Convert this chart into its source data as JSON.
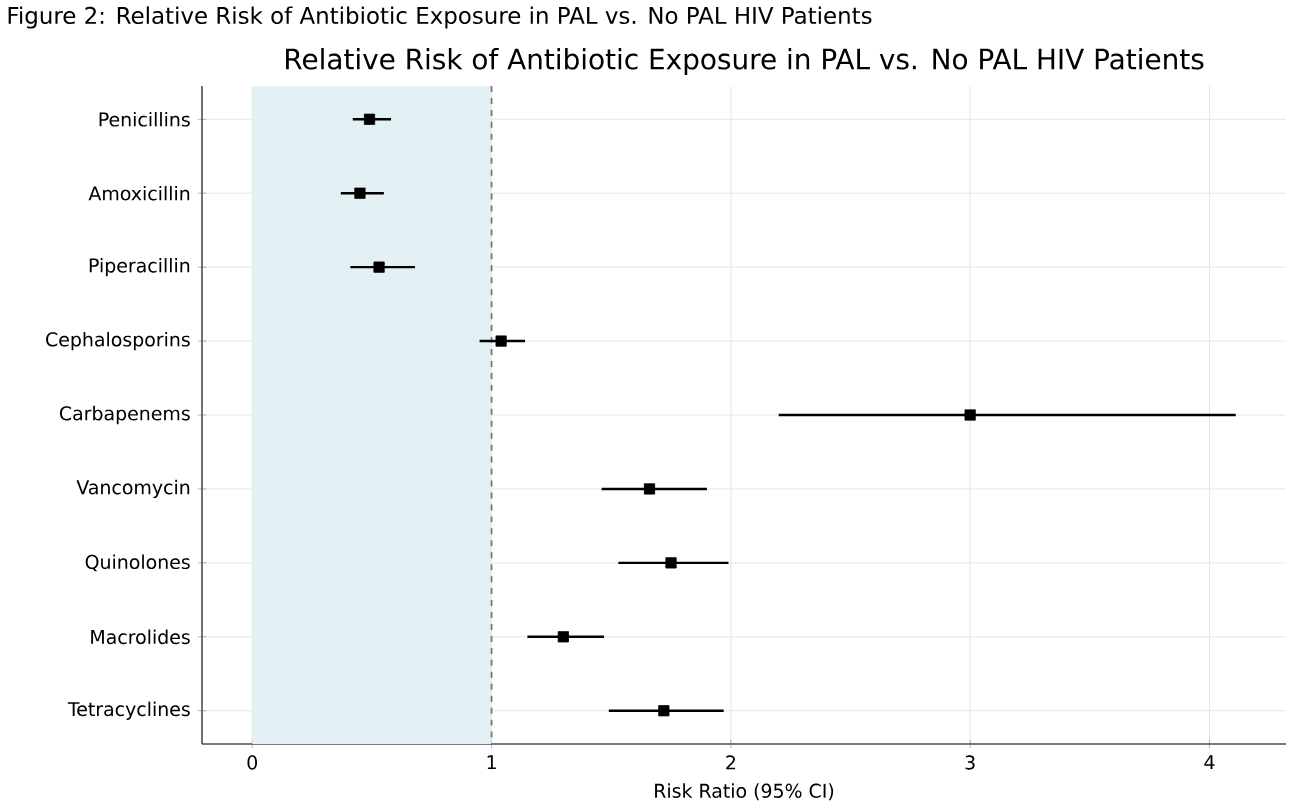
{
  "chart_data": {
    "type": "scatter",
    "orientation": "horizontal",
    "title": "Relative Risk of Antibiotic Exposure in PAL vs. No PAL HIV Patients",
    "annotations": [
      "Figure 2: Relative Risk of Antibiotic Exposure in PAL vs. No PAL HIV Patients"
    ],
    "xlabel": "Risk Ratio (95% CI)",
    "categories": [
      "Penicillins",
      "Amoxicillin",
      "Piperacillin",
      "Cephalosporins",
      "Carbapenems",
      "Vancomycin",
      "Quinolones",
      "Macrolides",
      "Tetracyclines"
    ],
    "values": [
      0.49,
      0.45,
      0.53,
      1.04,
      3.0,
      1.66,
      1.75,
      1.3,
      1.72
    ],
    "errors": [
      [
        0.42,
        0.58
      ],
      [
        0.37,
        0.55
      ],
      [
        0.41,
        0.68
      ],
      [
        0.95,
        1.14
      ],
      [
        2.2,
        4.11
      ],
      [
        1.46,
        1.9
      ],
      [
        1.53,
        1.99
      ],
      [
        1.15,
        1.47
      ],
      [
        1.49,
        1.97
      ]
    ],
    "color": "#000000",
    "marker": "square",
    "xlim": [
      -0.21,
      4.32
    ],
    "xticks": [
      0,
      1,
      2,
      3,
      4
    ],
    "grid": true,
    "bands": [
      {
        "axis": "x",
        "from": 0,
        "to": 1,
        "color": "#e3f1f5"
      }
    ],
    "ref_lines": [
      {
        "axis": "x",
        "value": 1,
        "color": "#777777",
        "line_style": "dashed"
      }
    ]
  }
}
